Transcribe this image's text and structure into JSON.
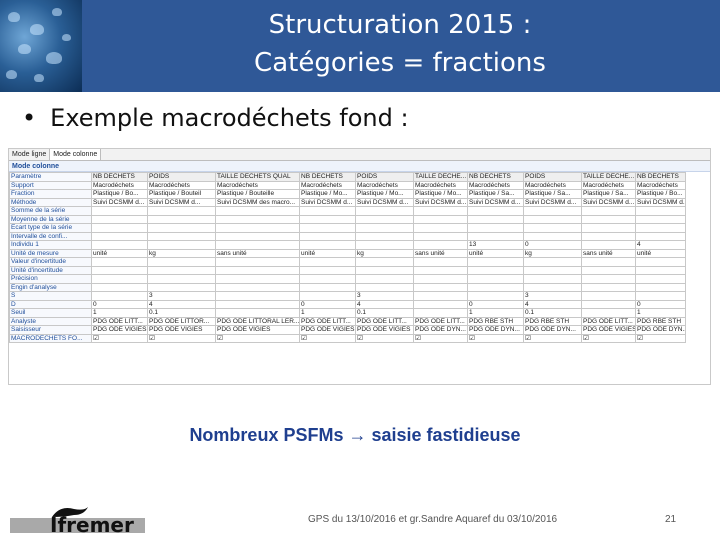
{
  "header": {
    "title_line1": "Structuration 2015 :",
    "title_line2": "Catégories = fractions"
  },
  "bullet": {
    "text": "Exemple macrodéchets fond :"
  },
  "grid": {
    "tabs": [
      "Mode ligne",
      "Mode colonne"
    ],
    "mode_label": "Mode colonne",
    "rows": [
      [
        "Paramètre",
        "NB DECHETS",
        "POIDS",
        "TAILLE DECHETS QUAL",
        "NB DECHETS",
        "POIDS",
        "TAILLE DECHE...",
        "NB DECHETS",
        "POIDS",
        "TAILLE DECHE...",
        "NB DECHETS"
      ],
      [
        "Support",
        "Macrodéchets",
        "Macrodéchets",
        "Macrodéchets",
        "Macrodéchets",
        "Macrodéchets",
        "Macrodéchets",
        "Macrodéchets",
        "Macrodéchets",
        "Macrodéchets",
        "Macrodéchets"
      ],
      [
        "Fraction",
        "Plastique / Bo...",
        "Plastique / Bouteil",
        "Plastique / Bouteille",
        "Plastique / Mo...",
        "Plastique / Mo...",
        "Plastique / Mo...",
        "Plastique / Sa...",
        "Plastique / Sa...",
        "Plastique / Sa...",
        "Plastique / Bo..."
      ],
      [
        "Méthode",
        "Suivi DCSMM d...",
        "Suivi DCSMM d...",
        "Suivi DCSMM des macro...",
        "Suivi DCSMM d...",
        "Suivi DCSMM d...",
        "Suivi DCSMM d...",
        "Suivi DCSMM d...",
        "Suivi DCSMM d...",
        "Suivi DCSMM d...",
        "Suivi DCSMM d..."
      ],
      [
        "Somme de la série",
        "",
        "",
        "",
        "",
        "",
        "",
        "",
        "",
        "",
        ""
      ],
      [
        "Moyenne de la série",
        "",
        "",
        "",
        "",
        "",
        "",
        "",
        "",
        "",
        ""
      ],
      [
        "Ecart type de la série",
        "",
        "",
        "",
        "",
        "",
        "",
        "",
        "",
        "",
        ""
      ],
      [
        "Intervalle de confi...",
        "",
        "",
        "",
        "",
        "",
        "",
        "",
        "",
        "",
        ""
      ],
      [
        "Individu 1",
        "",
        "",
        "",
        "",
        "",
        "",
        "13",
        "0",
        "",
        "4"
      ],
      [
        "Unité de mesure",
        "unité",
        "kg",
        "sans unité",
        "unité",
        "kg",
        "sans unité",
        "unité",
        "kg",
        "sans unité",
        "unité"
      ],
      [
        "Valeur d'incertitude",
        "",
        "",
        "",
        "",
        "",
        "",
        "",
        "",
        "",
        ""
      ],
      [
        "Unité d'incertitude",
        "",
        "",
        "",
        "",
        "",
        "",
        "",
        "",
        "",
        ""
      ],
      [
        "Précision",
        "",
        "",
        "",
        "",
        "",
        "",
        "",
        "",
        "",
        ""
      ],
      [
        "Engin d'analyse",
        "",
        "",
        "",
        "",
        "",
        "",
        "",
        "",
        "",
        ""
      ],
      [
        "S",
        "",
        "3",
        "",
        "",
        "3",
        "",
        "",
        "3",
        "",
        ""
      ],
      [
        "D",
        "0",
        "4",
        "",
        "0",
        "4",
        "",
        "0",
        "4",
        "",
        "0"
      ],
      [
        "Seuil",
        "1",
        "0.1",
        "",
        "1",
        "0.1",
        "",
        "1",
        "0.1",
        "",
        "1"
      ],
      [
        "Analyste",
        "PDG ODE LITT...",
        "PDG ODE LITTOR...",
        "PDG ODE LITTORAL LER...",
        "PDG ODE LITT...",
        "PDG ODE LITT...",
        "PDG ODE LITT...",
        "PDG RBE STH",
        "PDG RBE STH",
        "PDG ODE LITT...",
        "PDG RBE STH"
      ],
      [
        "Saisisseur",
        "PDG ODE VIGIES",
        "PDG ODE VIGIES",
        "PDG ODE VIGIES",
        "PDG ODE VIGIES",
        "PDG ODE VIGIES",
        "PDG ODE DYN...",
        "PDG ODE DYN...",
        "PDG ODE DYN...",
        "PDG ODE VIGIES",
        "PDG ODE DYN..."
      ],
      [
        "MACRODECHETS FO...",
        "☑",
        "☑",
        "☑",
        "☑",
        "☑",
        "☑",
        "☑",
        "☑",
        "☑",
        "☑"
      ]
    ]
  },
  "caption": {
    "text": "Nombreux PSFMs → saisie fastidieuse"
  },
  "footer": {
    "logo_text": "Ifremer",
    "reference": "GPS du 13/10/2016 et gr.Sandre Aquaref du 03/10/2016",
    "page_number": "21"
  },
  "colors": {
    "header_band": "#2f5897",
    "caption_text": "#1f3f8f"
  }
}
